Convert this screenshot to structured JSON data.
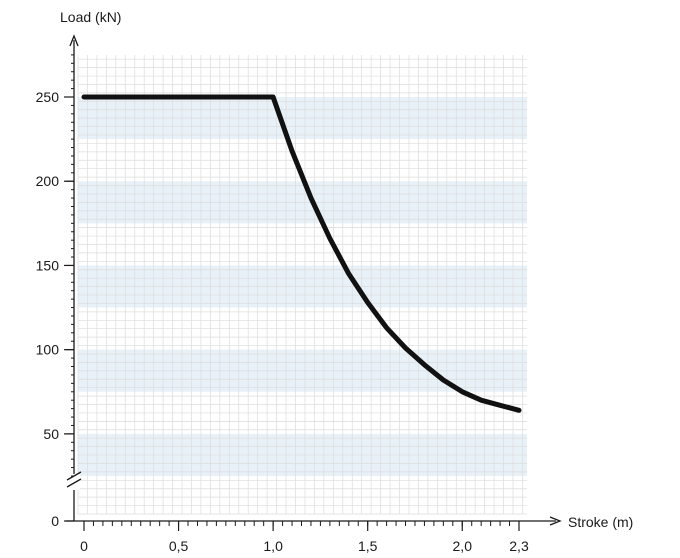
{
  "chart_data": {
    "type": "line",
    "xlabel": "Stroke (m)",
    "ylabel": "Load (kN)",
    "xlim": [
      0,
      2.3
    ],
    "ylim": [
      0,
      275
    ],
    "x_ticks": [
      0,
      0.5,
      1.0,
      1.5,
      2.0,
      2.3
    ],
    "x_tick_labels": [
      "0",
      "0,5",
      "1,0",
      "1,5",
      "2,0",
      "2,3"
    ],
    "y_ticks": [
      0,
      50,
      100,
      150,
      200,
      250
    ],
    "y_tick_labels": [
      "0",
      "50",
      "100",
      "150",
      "200",
      "250"
    ],
    "axis_break": "y between 0 and 25",
    "grid": true,
    "alternating_bands": true,
    "series": [
      {
        "color": "#111111",
        "x": [
          0,
          0.25,
          0.5,
          0.75,
          1.0,
          1.1,
          1.2,
          1.3,
          1.4,
          1.5,
          1.6,
          1.7,
          1.8,
          1.9,
          2.0,
          2.1,
          2.2,
          2.3
        ],
        "y": [
          250,
          250,
          250,
          250,
          250,
          218,
          190,
          166,
          145,
          128,
          113,
          101,
          91,
          82,
          75,
          70,
          67,
          64
        ]
      }
    ]
  },
  "colors": {
    "band": "#e8f1f8",
    "grid": "#dcdcdc",
    "axis": "#1a1a1a",
    "line": "#111111"
  }
}
